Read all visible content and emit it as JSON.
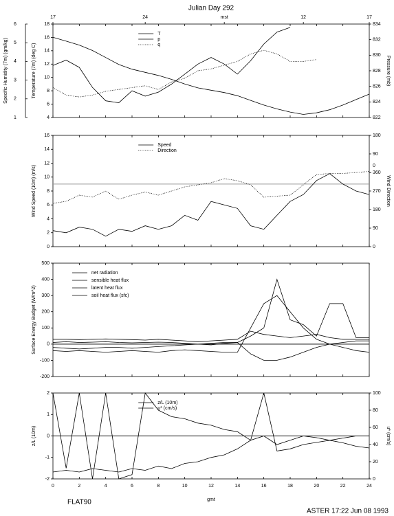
{
  "chart_data": [
    {
      "type": "line",
      "title": "Julian Day 292",
      "top_xticks": [
        {
          "value": 0,
          "label": "17"
        },
        {
          "value": 7,
          "label": "24"
        },
        {
          "value": 13,
          "label": "mst"
        },
        {
          "value": 19,
          "label": "12"
        },
        {
          "value": 24,
          "label": "17"
        }
      ],
      "ylabel": "Temperature (7m) (deg C)",
      "y2label": "Pressure (mb)",
      "y3label": "Specific Humidity (7m) (gm/kg)",
      "xlim": [
        0,
        24
      ],
      "ylim": [
        4,
        18
      ],
      "yticks": [
        4,
        6,
        8,
        10,
        12,
        14,
        16,
        18
      ],
      "y2lim": [
        822,
        834
      ],
      "y2ticks": [
        822,
        824,
        826,
        828,
        830,
        832,
        834
      ],
      "y3lim": [
        1,
        6
      ],
      "y3ticks": [
        1,
        2,
        3,
        4,
        5,
        6
      ],
      "legend": "upper center",
      "x": [
        0,
        1,
        2,
        3,
        4,
        5,
        6,
        7,
        8,
        9,
        10,
        11,
        12,
        13,
        14,
        15,
        16,
        17,
        18,
        19,
        20,
        21,
        22,
        23,
        24
      ],
      "series": [
        {
          "name": "T",
          "color": "#000000",
          "style": "solid",
          "values": [
            11.8,
            12.6,
            11.5,
            8.5,
            6.5,
            6.2,
            8,
            7.2,
            7.8,
            9,
            10.5,
            12,
            13,
            12,
            10.5,
            12.5,
            15,
            16.8,
            17.5,
            null,
            null,
            null,
            null,
            null,
            null
          ]
        },
        {
          "name": "p",
          "color": "#000000",
          "style": "solid",
          "axis": "y2",
          "values": [
            832.3,
            831.8,
            831.3,
            830.6,
            829.7,
            828.8,
            828.2,
            827.8,
            827.4,
            826.9,
            826.3,
            825.8,
            825.5,
            825.2,
            824.8,
            824.2,
            823.6,
            823.1,
            822.7,
            822.4,
            822.6,
            823.0,
            823.6,
            824.3,
            825.0
          ]
        },
        {
          "name": "q",
          "color": "#000000",
          "style": "dotted",
          "axis": "y3",
          "values": [
            2.6,
            2.2,
            2.1,
            2.2,
            2.4,
            2.5,
            2.6,
            2.7,
            2.5,
            2.9,
            3.1,
            3.5,
            3.6,
            3.8,
            4.0,
            4.4,
            4.6,
            4.4,
            4.0,
            4.0,
            4.1,
            null,
            null,
            null,
            null
          ]
        }
      ]
    },
    {
      "type": "line",
      "ylabel": "Wind Speed (10m) (m/s)",
      "y2label": "Wind Direction",
      "xlim": [
        0,
        24
      ],
      "ylim": [
        0,
        16
      ],
      "yticks": [
        0,
        2,
        4,
        6,
        8,
        10,
        12,
        14,
        16
      ],
      "y2lim": [
        0,
        540
      ],
      "y2ticks": [
        0,
        90,
        180,
        270,
        360,
        {
          "value": 360,
          "label": "0"
        },
        {
          "value": 450,
          "label": "90"
        },
        {
          "value": 540,
          "label": "180"
        }
      ],
      "hline": 9,
      "hline_color": "#999999",
      "legend": "upper center",
      "x": [
        0,
        1,
        2,
        3,
        4,
        5,
        6,
        7,
        8,
        9,
        10,
        11,
        12,
        13,
        14,
        15,
        16,
        17,
        18,
        19,
        20,
        21,
        22,
        23,
        24
      ],
      "series": [
        {
          "name": "Speed",
          "color": "#000000",
          "style": "solid",
          "values": [
            2.3,
            2,
            2.8,
            2.5,
            1.5,
            2.5,
            2.2,
            3,
            2.5,
            3,
            4.5,
            3.8,
            6.5,
            6,
            5.5,
            3,
            2.5,
            4.5,
            6.5,
            7.5,
            9.5,
            10.5,
            9,
            8,
            7.5
          ]
        },
        {
          "name": "Direction",
          "color": "#000000",
          "style": "dotted",
          "axis": "y2",
          "values": [
            210,
            220,
            250,
            240,
            270,
            230,
            250,
            265,
            250,
            270,
            290,
            300,
            310,
            330,
            320,
            300,
            240,
            245,
            250,
            300,
            350,
            355,
            355,
            360,
            365
          ]
        }
      ]
    },
    {
      "type": "line",
      "ylabel": "Surface Energy Budget (W/m^2)",
      "xlim": [
        0,
        24
      ],
      "ylim": [
        -200,
        500
      ],
      "yticks": [
        -200,
        -100,
        0,
        100,
        200,
        300,
        400,
        500
      ],
      "hline": 0,
      "hline_color": "#000000",
      "legend": "upper left",
      "x": [
        0,
        1,
        2,
        3,
        4,
        5,
        6,
        7,
        8,
        9,
        10,
        11,
        12,
        13,
        14,
        15,
        16,
        17,
        18,
        19,
        20,
        21,
        22,
        23,
        24
      ],
      "series": [
        {
          "name": "net radiation",
          "color": "#000000",
          "style": "solid",
          "values": [
            -40,
            -45,
            -40,
            -45,
            -50,
            -45,
            -40,
            -45,
            -50,
            -40,
            -35,
            -40,
            -45,
            -50,
            -50,
            100,
            250,
            300,
            200,
            100,
            30,
            0,
            -20,
            -40,
            -50
          ]
        },
        {
          "name": "sensible heat flux",
          "color": "#000000",
          "style": "solid",
          "values": [
            10,
            15,
            10,
            12,
            15,
            10,
            8,
            10,
            12,
            10,
            5,
            0,
            -5,
            5,
            10,
            50,
            100,
            400,
            150,
            120,
            50,
            250,
            250,
            40,
            40
          ]
        },
        {
          "name": "latent heat flux",
          "color": "#000000",
          "style": "solid",
          "values": [
            30,
            30,
            28,
            30,
            32,
            30,
            28,
            25,
            30,
            25,
            20,
            15,
            20,
            25,
            30,
            80,
            60,
            50,
            40,
            50,
            60,
            40,
            30,
            30,
            30
          ]
        },
        {
          "name": "soil heat flux (sfc)",
          "color": "#000000",
          "style": "solid",
          "values": [
            -20,
            -25,
            -30,
            -25,
            -20,
            -20,
            -25,
            -20,
            -15,
            -10,
            -5,
            0,
            5,
            10,
            10,
            -60,
            -100,
            -100,
            -80,
            -50,
            -20,
            0,
            10,
            20,
            20
          ]
        }
      ]
    },
    {
      "type": "line",
      "ylabel": "z/L (10m)",
      "y2label": "u* (cm/s)",
      "xlabel": "gmt",
      "xlim": [
        0,
        24
      ],
      "xticks": [
        0,
        2,
        4,
        6,
        8,
        10,
        12,
        14,
        16,
        18,
        20,
        22,
        24
      ],
      "ylim": [
        -2,
        2
      ],
      "yticks": [
        -2,
        -1,
        0,
        1,
        2
      ],
      "y2lim": [
        0,
        100
      ],
      "y2ticks": [
        0,
        20,
        40,
        60,
        80,
        100
      ],
      "hline": 0,
      "hline_color": "#000000",
      "legend": "upper center",
      "x": [
        0,
        1,
        2,
        3,
        4,
        5,
        6,
        7,
        8,
        9,
        10,
        11,
        12,
        13,
        14,
        15,
        16,
        17,
        18,
        19,
        20,
        21,
        22,
        23,
        24
      ],
      "series": [
        {
          "name": "z/L (10m)",
          "color": "#000000",
          "style": "solid",
          "values": [
            2,
            -1.5,
            2,
            -2,
            2,
            -2,
            -1.8,
            2,
            1.2,
            0.9,
            0.8,
            0.6,
            0.5,
            0.3,
            0.2,
            -0.2,
            2,
            -0.7,
            -0.6,
            -0.4,
            -0.3,
            -0.2,
            -0.1,
            0.0,
            0.0
          ]
        },
        {
          "name": "u* (cm/s)",
          "color": "#000000",
          "style": "solid",
          "axis": "y2",
          "values": [
            8,
            10,
            8,
            12,
            10,
            8,
            12,
            10,
            15,
            12,
            18,
            20,
            25,
            28,
            35,
            45,
            50,
            40,
            45,
            50,
            48,
            45,
            42,
            38,
            36
          ]
        }
      ]
    }
  ],
  "footer": {
    "left": "FLAT90",
    "right": "ASTER 17:22 Jun 08 1993"
  }
}
